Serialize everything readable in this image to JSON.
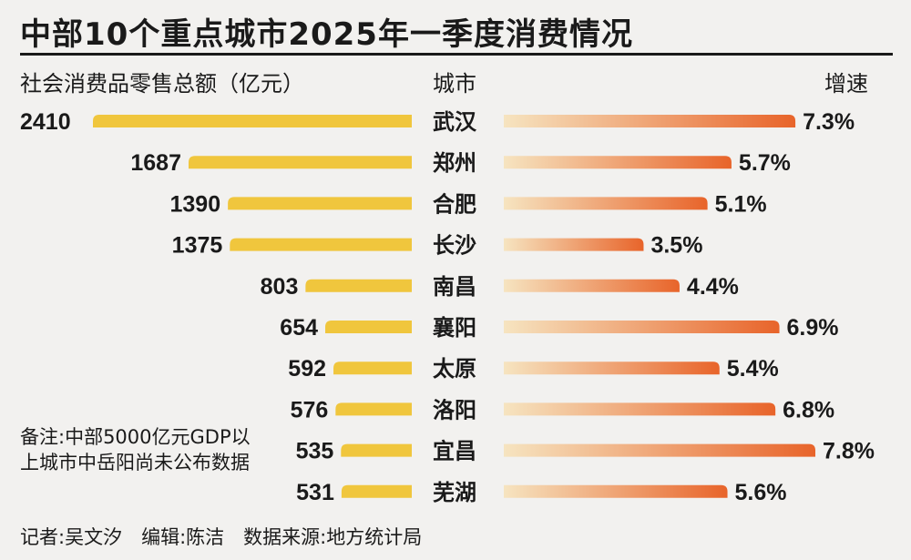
{
  "title": "中部10个重点城市2025年一季度消费情况",
  "headers": {
    "left": "社会消费品零售总额（亿元）",
    "center": "城市",
    "right": "增速"
  },
  "note": "备注:中部5000亿元GDP以上城市中岳阳尚未公布数据",
  "credit": "记者:吴文汐　编辑:陈洁　数据来源:地方统计局",
  "colors": {
    "retail_bar": "#f0c63d",
    "growth_bar_start": "#f6e4c0",
    "growth_bar_end": "#e8642a"
  },
  "chart_data": {
    "type": "bar",
    "categories": [
      "武汉",
      "郑州",
      "合肥",
      "长沙",
      "南昌",
      "襄阳",
      "太原",
      "洛阳",
      "宜昌",
      "芜湖"
    ],
    "series": [
      {
        "name": "社会消费品零售总额（亿元）",
        "values": [
          2410,
          1687,
          1390,
          1375,
          803,
          654,
          592,
          576,
          535,
          531
        ],
        "labels": [
          "2410",
          "1687",
          "1390",
          "1375",
          "803",
          "654",
          "592",
          "576",
          "535",
          "531"
        ]
      },
      {
        "name": "增速",
        "values": [
          7.3,
          5.7,
          5.1,
          3.5,
          4.4,
          6.9,
          5.4,
          6.8,
          7.8,
          5.6
        ],
        "labels": [
          "7.3%",
          "5.7%",
          "5.1%",
          "3.5%",
          "4.4%",
          "6.9%",
          "5.4%",
          "6.8%",
          "7.8%",
          "5.6%"
        ]
      }
    ]
  }
}
